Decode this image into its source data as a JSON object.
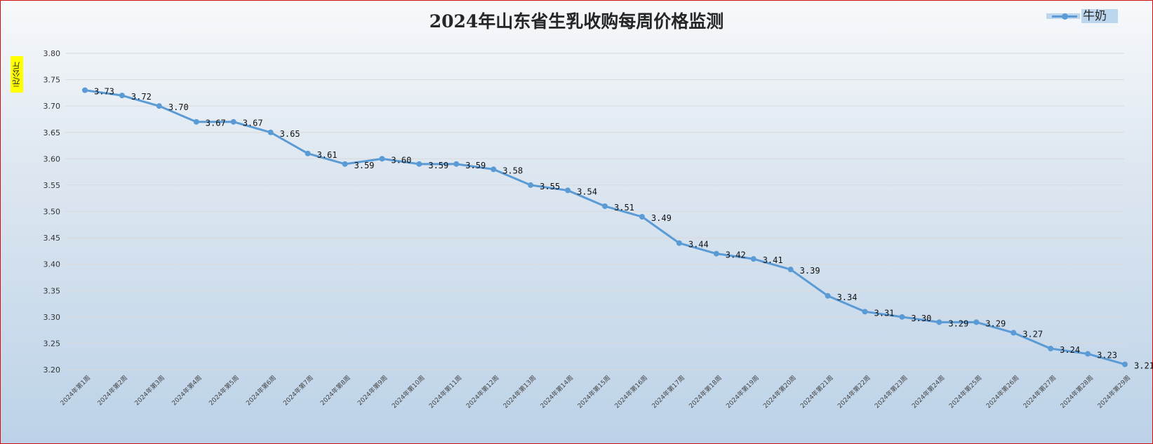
{
  "chart_data": {
    "type": "line",
    "title": "2024年山东省生乳收购每周价格监测",
    "ylabel": "元/公斤",
    "xlabel": "",
    "ylim": [
      3.2,
      3.8
    ],
    "y_ticks": [
      "3.20",
      "3.25",
      "3.30",
      "3.35",
      "3.40",
      "3.45",
      "3.50",
      "3.55",
      "3.60",
      "3.65",
      "3.70",
      "3.75",
      "3.80"
    ],
    "grid": true,
    "legend_position": "top-right",
    "categories": [
      "2024年第1周",
      "2024年第2周",
      "2024年第3周",
      "2024年第4周",
      "2024年第5周",
      "2024年第6周",
      "2024年第7周",
      "2024年第8周",
      "2024年第9周",
      "2024年第10周",
      "2024年第11周",
      "2024年第12周",
      "2024年第13周",
      "2024年第14周",
      "2024年第15周",
      "2024年第16周",
      "2024年第17周",
      "2024年第18周",
      "2024年第19周",
      "2024年第20周",
      "2024年第21周",
      "2024年第22周",
      "2024年第23周",
      "2024年第24周",
      "2024年第25周",
      "2024年第26周",
      "2024年第27周",
      "2024年第28周",
      "2024年第29周"
    ],
    "series": [
      {
        "name": "牛奶",
        "color": "#5b9bd5",
        "values": [
          3.73,
          3.72,
          3.7,
          3.67,
          3.67,
          3.65,
          3.61,
          3.59,
          3.6,
          3.59,
          3.59,
          3.58,
          3.55,
          3.54,
          3.51,
          3.49,
          3.44,
          3.42,
          3.41,
          3.39,
          3.34,
          3.31,
          3.3,
          3.29,
          3.29,
          3.27,
          3.24,
          3.23,
          3.21
        ]
      }
    ]
  }
}
